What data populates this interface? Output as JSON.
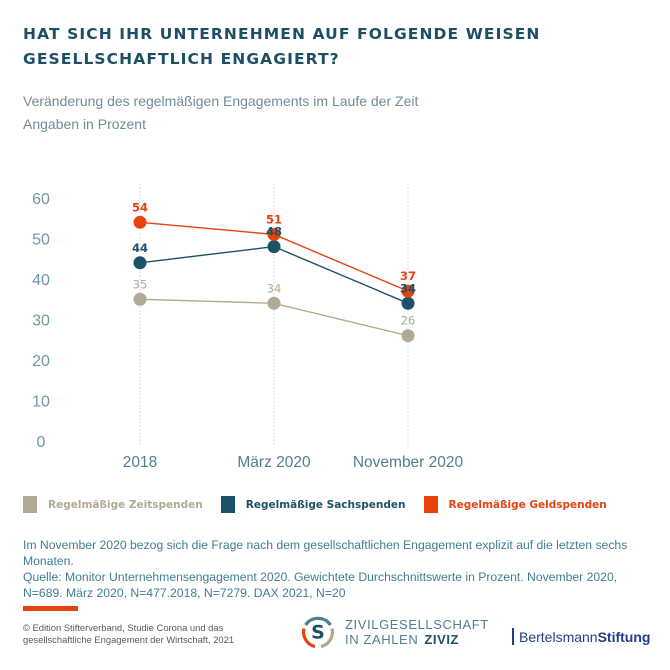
{
  "title": "HAT SICH IHR UNTERNEHMEN AUF FOLGENDE WEISEN GESELLSCHAFTLICH ENGAGIERT?",
  "subtitle": {
    "line1": "Veränderung des regelmäßigen Engagements im Laufe der Zeit",
    "line2": "Angaben in Prozent"
  },
  "colors": {
    "title": "#1c4f63",
    "axis_text": "#4f7f92",
    "zeitspenden": "#b0a994",
    "sachspenden": "#1c5267",
    "geldspenden": "#e8420e"
  },
  "chart_data": {
    "type": "line",
    "title": "HAT SICH IHR UNTERNEHMEN AUF FOLGENDE WEISEN GESELLSCHAFTLICH ENGAGIERT?",
    "subtitle": "Veränderung des regelmäßigen Engagements im Laufe der Zeit – Angaben in Prozent",
    "xlabel": "",
    "ylabel": "",
    "categories": [
      "2018",
      "März 2020",
      "November 2020"
    ],
    "ylim": [
      0,
      60
    ],
    "yticks": [
      0,
      10,
      20,
      30,
      40,
      50,
      60
    ],
    "grid": "vertical dotted lines at each category",
    "legend_position": "bottom-left",
    "series": [
      {
        "key": "zeitspenden",
        "name": "Regelmäßige Zeitspenden",
        "color": "#b0a994",
        "values": [
          35,
          34,
          26
        ]
      },
      {
        "key": "sachspenden",
        "name": "Regelmäßige Sachspenden",
        "color": "#1c5267",
        "values": [
          44,
          48,
          34
        ]
      },
      {
        "key": "geldspenden",
        "name": "Regelmäßige Geldspenden",
        "color": "#e8420e",
        "values": [
          54,
          51,
          37
        ]
      }
    ]
  },
  "legend": [
    {
      "label": "Regelmäßige Zeitspenden",
      "color": "#b0a994"
    },
    {
      "label": "Regelmäßige Sachspenden",
      "color": "#1c5267"
    },
    {
      "label": "Regelmäßige Geldspenden",
      "color": "#e8420e"
    }
  ],
  "footnote": {
    "line1": "Im November 2020 bezog sich die Frage nach dem gesellschaftlichen Engagement explizit auf die letzten sechs Monaten.",
    "line2": "Quelle: Monitor Unternehmensengagement 2020. Gewichtete Durchschnittswerte in Prozent. November 2020,",
    "line3": "N=689. März 2020, N=477.2018, N=7279. DAX 2021, N=20"
  },
  "footer": {
    "copyright_line1": "© Edition Stifterverband, Studie Corona und das",
    "copyright_line2": "gesellschaftliche Engagement der Wirtschaft, 2021",
    "ziviz_logo_letter": "S",
    "ziviz_line1": "ZIVILGESELLSCHAFT",
    "ziviz_line2": "IN ZAHLEN",
    "ziviz_bold": "ZIVIZ",
    "bertelsmann_regular": "Bertelsmann",
    "bertelsmann_bold": "Stiftung"
  }
}
